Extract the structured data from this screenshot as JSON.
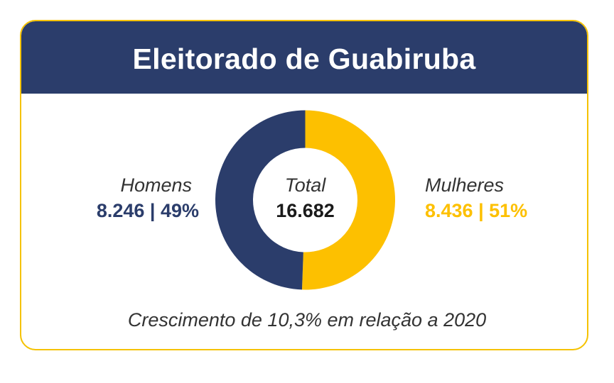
{
  "chart_data": {
    "type": "pie",
    "title": "Eleitorado de Guabiruba",
    "center_label": "Total",
    "center_value": "16.682",
    "slices": [
      {
        "name": "Mulheres",
        "value": 8436,
        "percent": 51,
        "display": "8.436 | 51%",
        "color": "#fdc000"
      },
      {
        "name": "Homens",
        "value": 8246,
        "percent": 49,
        "display": "8.246 | 49%",
        "color": "#2b3d6b"
      }
    ],
    "footnote": "Crescimento de 10,3% em relação a 2020"
  }
}
